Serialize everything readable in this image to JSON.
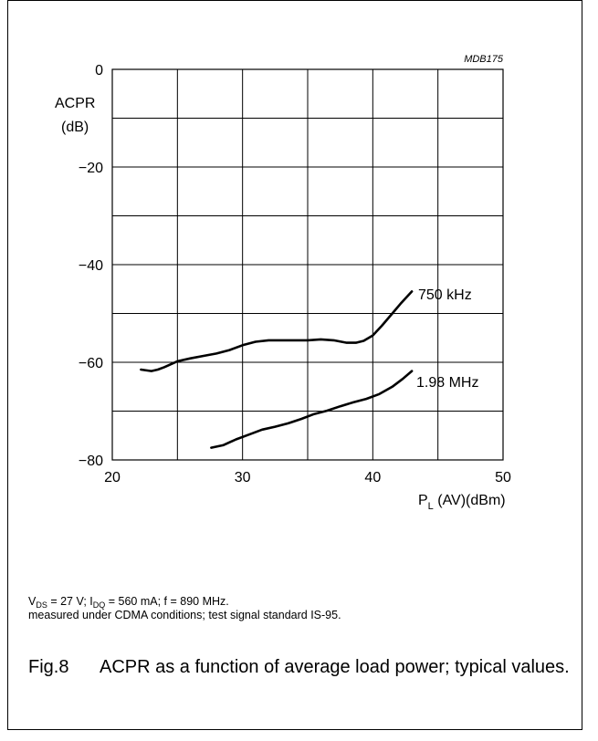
{
  "figure": {
    "code": "MDB175",
    "caption_number": "Fig.8",
    "caption_text": "ACPR as a function of average load power; typical values.",
    "conditions": {
      "line1": [
        {
          "t": "V"
        },
        {
          "s": "DS"
        },
        {
          "t": " = 27 V; I"
        },
        {
          "s": "DQ"
        },
        {
          "t": " = 560 mA; f = 890 MHz."
        }
      ],
      "line2": "measured under CDMA conditions; test signal standard IS-95."
    }
  },
  "chart_data": {
    "type": "line",
    "title": "",
    "ylabel_line1": "ACPR",
    "ylabel_line2": "(dB)",
    "xlabel_main": "P",
    "xlabel_sub": "L",
    "xlabel_rest": " (AV)(dBm)",
    "xlim": [
      20,
      50
    ],
    "ylim": [
      -80,
      0
    ],
    "x_ticks": [
      20,
      30,
      40,
      50
    ],
    "y_ticks": [
      0,
      -20,
      -40,
      -60,
      -80
    ],
    "y_tick_labels": [
      "0",
      "−20",
      "−40",
      "−60",
      "−80"
    ],
    "x_grid": [
      20,
      25,
      30,
      35,
      40,
      45,
      50
    ],
    "y_grid": [
      0,
      -10,
      -20,
      -30,
      -40,
      -50,
      -60,
      -70,
      -80
    ],
    "grid": true,
    "series": [
      {
        "name": "750 kHz",
        "x": [
          22.2,
          23.0,
          23.5,
          24.0,
          25.0,
          26.0,
          27.0,
          28.0,
          29.0,
          30.0,
          31.0,
          32.0,
          33.0,
          34.0,
          35.0,
          36.0,
          37.0,
          38.0,
          38.7,
          39.3,
          40.0,
          40.7,
          41.5,
          42.2,
          43.0
        ],
        "y": [
          -61.5,
          -61.8,
          -61.5,
          -61.0,
          -59.8,
          -59.2,
          -58.7,
          -58.2,
          -57.5,
          -56.5,
          -55.8,
          -55.5,
          -55.5,
          -55.5,
          -55.5,
          -55.3,
          -55.5,
          -56.0,
          -56.0,
          -55.6,
          -54.5,
          -52.5,
          -50.0,
          -47.8,
          -45.5
        ]
      },
      {
        "name": "1.98 MHz",
        "x": [
          27.6,
          28.5,
          29.5,
          30.5,
          31.5,
          32.5,
          33.5,
          34.5,
          35.5,
          36.5,
          37.5,
          38.5,
          39.5,
          40.5,
          41.5,
          42.3,
          43.0
        ],
        "y": [
          -77.5,
          -77.0,
          -75.8,
          -74.8,
          -73.8,
          -73.2,
          -72.5,
          -71.6,
          -70.6,
          -69.9,
          -69.0,
          -68.2,
          -67.5,
          -66.5,
          -65.0,
          -63.4,
          -61.8
        ]
      }
    ]
  }
}
